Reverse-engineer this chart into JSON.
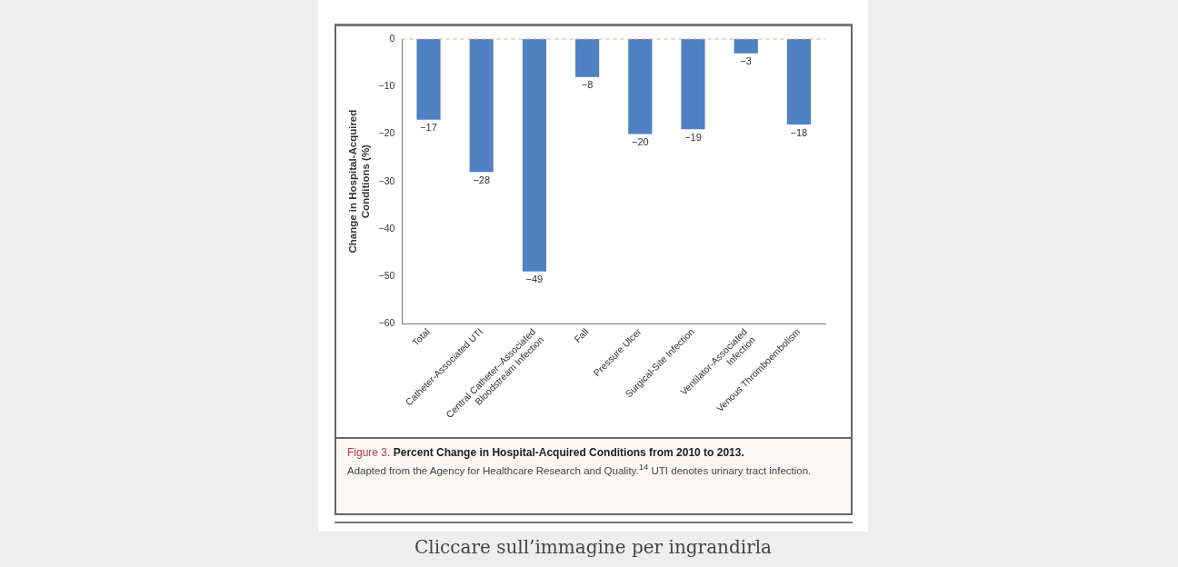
{
  "chart_data": {
    "type": "bar",
    "title": "Figure 3. Percent Change in Hospital-Acquired Conditions from 2010 to 2013.",
    "ylabel": "Change in Hospital-Acquired\nConditions (%)",
    "categories": [
      "Total",
      "Catheter-Associated UTI",
      "Central Catheter–Associated\nBloodstream Infection",
      "Fall",
      "Pressure Ulcer",
      "Surgical-Site Infection",
      "Ventilator-Associated\nInfection",
      "Venous Thromboembolism"
    ],
    "values": [
      -17,
      -28,
      -49,
      -8,
      -20,
      -19,
      -3,
      -18
    ],
    "color": "#4f81c3",
    "ylim": [
      -60,
      0
    ],
    "yticks": [
      -60,
      -50,
      -40,
      -30,
      -20,
      -10,
      0
    ],
    "grid": false,
    "legend": false,
    "data_labels": true,
    "ref_lines": [
      {
        "axis": "y",
        "value": 0,
        "color": "#d9a98a",
        "line_style": "dashed"
      }
    ],
    "annotations": [
      "Adapted from the Agency for Healthcare Research and Quality.$^{14}$ UTI denotes urinary tract infection.",
      "Cliccare sull’immagine per ingrandirla"
    ]
  }
}
